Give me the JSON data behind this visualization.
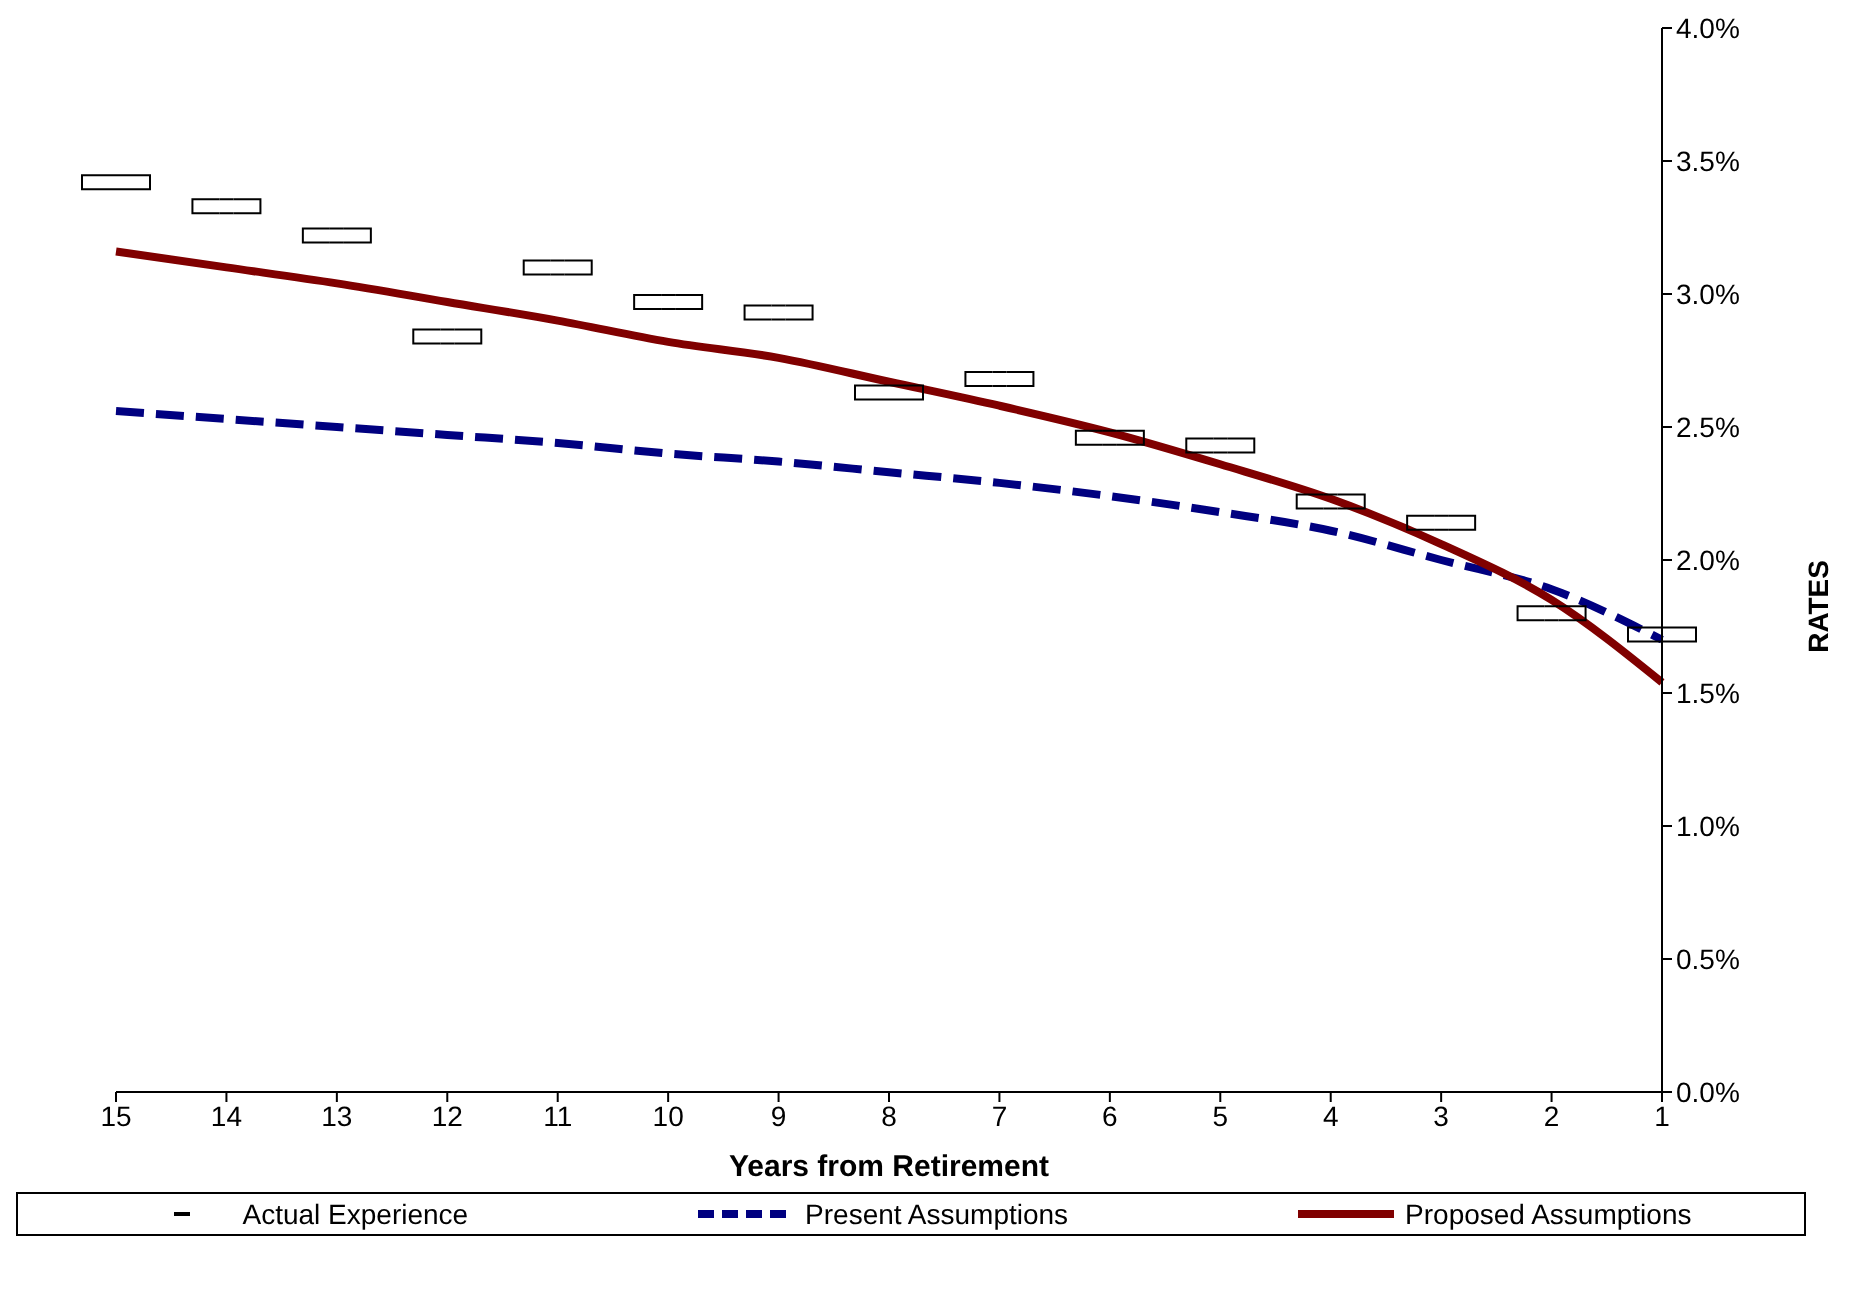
{
  "chart_data": {
    "type": "line",
    "xlabel": "Years from Retirement",
    "ylabel": "RATES",
    "categories": [
      "15",
      "14",
      "13",
      "12",
      "11",
      "10",
      "9",
      "8",
      "7",
      "6",
      "5",
      "4",
      "3",
      "2",
      "1"
    ],
    "series": [
      {
        "name": "Actual Experience",
        "type": "scatter",
        "marker": "square",
        "color": "#000000",
        "values": [
          3.42,
          3.33,
          3.22,
          2.84,
          3.1,
          2.97,
          2.93,
          2.63,
          2.68,
          2.46,
          2.43,
          2.22,
          2.14,
          1.8,
          1.72
        ]
      },
      {
        "name": "Present Assumptions",
        "line_style": "dashed",
        "marker": "none",
        "color": "#000080",
        "values": [
          2.56,
          2.53,
          2.5,
          2.47,
          2.44,
          2.4,
          2.37,
          2.33,
          2.29,
          2.24,
          2.18,
          2.11,
          2.0,
          1.89,
          1.7
        ]
      },
      {
        "name": "Proposed Assumptions",
        "line_style": "solid",
        "marker": "none",
        "color": "#800000",
        "values": [
          3.16,
          3.1,
          3.04,
          2.97,
          2.9,
          2.82,
          2.76,
          2.67,
          2.58,
          2.48,
          2.36,
          2.23,
          2.06,
          1.85,
          1.54
        ]
      }
    ],
    "ylim": [
      0,
      4
    ],
    "yticks": [
      {
        "value": 0,
        "label": "0.0%"
      },
      {
        "value": 0.5,
        "label": "0.5%"
      },
      {
        "value": 1,
        "label": "1.0%"
      },
      {
        "value": 1.5,
        "label": "1.5%"
      },
      {
        "value": 2,
        "label": "2.0%"
      },
      {
        "value": 2.5,
        "label": "2.5%"
      },
      {
        "value": 3,
        "label": "3.0%"
      },
      {
        "value": 3.5,
        "label": "3.5%"
      },
      {
        "value": 4,
        "label": "4.0%"
      }
    ],
    "grid": false,
    "legend": "bottom"
  }
}
